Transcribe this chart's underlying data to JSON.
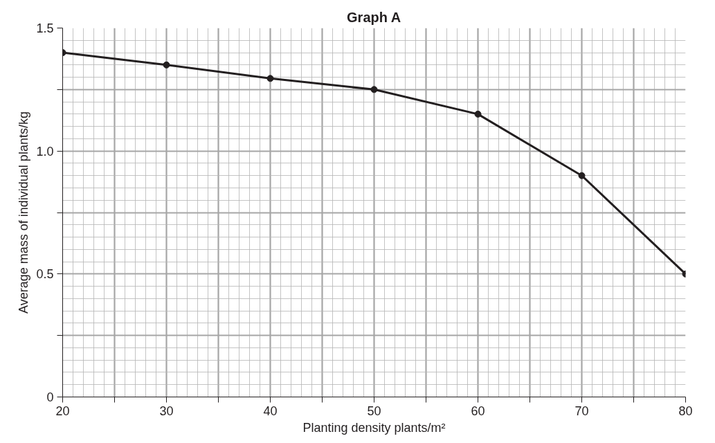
{
  "chart_data": {
    "type": "line",
    "title": "Graph A",
    "xlabel": "Planting density plants/m²",
    "ylabel": "Average mass of individual plants/kg",
    "x": [
      20,
      30,
      40,
      50,
      60,
      70,
      80
    ],
    "series": [
      {
        "color": "#231f20",
        "values": [
          1.4,
          1.35,
          1.295,
          1.25,
          1.15,
          0.9,
          0.5
        ]
      }
    ],
    "xlim": [
      20,
      80
    ],
    "ylim": [
      0,
      1.5
    ],
    "xticks": [
      20,
      {
        "value": 25,
        "label": null
      },
      30,
      {
        "value": 35,
        "label": null
      },
      40,
      {
        "value": 45,
        "label": null
      },
      50,
      {
        "value": 55,
        "label": null
      },
      60,
      {
        "value": 65,
        "label": null
      },
      70,
      {
        "value": 75,
        "label": null
      },
      80
    ],
    "yticks": [
      0,
      {
        "value": 0.25,
        "label": null
      },
      0.5,
      {
        "value": 0.75,
        "label": null
      },
      {
        "value": 1.0,
        "label": "1.0"
      },
      {
        "value": 1.25,
        "label": null
      },
      1.5
    ],
    "grid": true,
    "marker": "circle",
    "line_style": "solid"
  }
}
